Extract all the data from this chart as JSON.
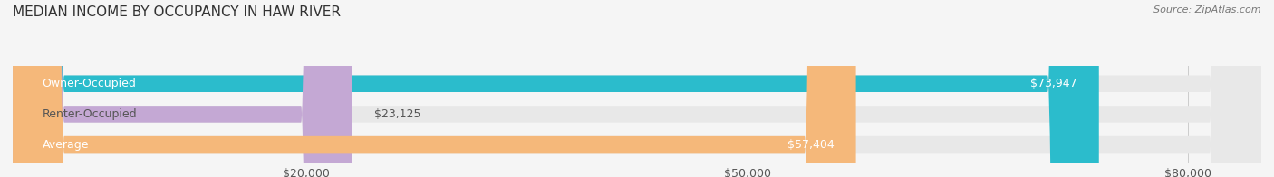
{
  "title": "MEDIAN INCOME BY OCCUPANCY IN HAW RIVER",
  "source": "Source: ZipAtlas.com",
  "categories": [
    "Owner-Occupied",
    "Renter-Occupied",
    "Average"
  ],
  "values": [
    73947,
    23125,
    57404
  ],
  "bar_colors": [
    "#2bbccc",
    "#c4a8d4",
    "#f5b87a"
  ],
  "bar_bg_color": "#e8e8e8",
  "value_labels": [
    "$73,947",
    "$23,125",
    "$57,404"
  ],
  "xlim": [
    0,
    85000
  ],
  "xticks": [
    20000,
    50000,
    80000
  ],
  "xtick_labels": [
    "$20,000",
    "$50,000",
    "$80,000"
  ],
  "title_fontsize": 11,
  "label_fontsize": 9,
  "tick_fontsize": 9,
  "bar_height": 0.55,
  "background_color": "#f5f5f5"
}
